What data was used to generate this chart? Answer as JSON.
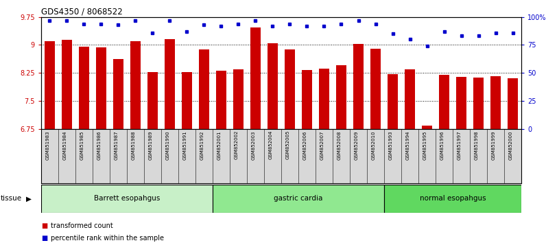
{
  "title": "GDS4350 / 8068522",
  "samples": [
    "GSM851983",
    "GSM851984",
    "GSM851985",
    "GSM851986",
    "GSM851987",
    "GSM851988",
    "GSM851989",
    "GSM851990",
    "GSM851991",
    "GSM851992",
    "GSM852001",
    "GSM852002",
    "GSM852003",
    "GSM852004",
    "GSM852005",
    "GSM852006",
    "GSM852007",
    "GSM852008",
    "GSM852009",
    "GSM852010",
    "GSM851993",
    "GSM851994",
    "GSM851995",
    "GSM851996",
    "GSM851997",
    "GSM851998",
    "GSM851999",
    "GSM852000"
  ],
  "bar_values": [
    9.1,
    9.13,
    8.95,
    8.93,
    8.62,
    9.1,
    8.28,
    9.15,
    8.28,
    8.88,
    8.3,
    8.35,
    9.47,
    9.04,
    8.88,
    8.32,
    8.37,
    8.45,
    9.02,
    8.9,
    8.22,
    8.35,
    6.83,
    8.19,
    8.14,
    8.12,
    8.16,
    8.1
  ],
  "dot_values": [
    97,
    97,
    94,
    94,
    93,
    97,
    86,
    97,
    87,
    93,
    92,
    94,
    97,
    92,
    94,
    92,
    92,
    94,
    97,
    94,
    85,
    80,
    74,
    87,
    83,
    83,
    86,
    86
  ],
  "groups": [
    {
      "label": "Barrett esopahgus",
      "start": 0,
      "end": 10,
      "color": "#c8f0c8"
    },
    {
      "label": "gastric cardia",
      "start": 10,
      "end": 20,
      "color": "#90e890"
    },
    {
      "label": "normal esopahgus",
      "start": 20,
      "end": 28,
      "color": "#60d860"
    }
  ],
  "ylim_left": [
    6.75,
    9.75
  ],
  "ylim_right": [
    0,
    100
  ],
  "yticks_left": [
    6.75,
    7.5,
    8.25,
    9.0,
    9.75
  ],
  "ytick_labels_left": [
    "6.75",
    "7.5",
    "8.25",
    "9",
    "9.75"
  ],
  "yticks_right": [
    0,
    25,
    50,
    75,
    100
  ],
  "ytick_labels_right": [
    "0",
    "25",
    "50",
    "75",
    "100%"
  ],
  "bar_color": "#cc0000",
  "dot_color": "#0000cc",
  "label_bg_color": "#d8d8d8",
  "group_colors": [
    "#c8f0c8",
    "#90e890",
    "#60d860"
  ],
  "tissue_label": "tissue",
  "legend_bar": "transformed count",
  "legend_dot": "percentile rank within the sample"
}
